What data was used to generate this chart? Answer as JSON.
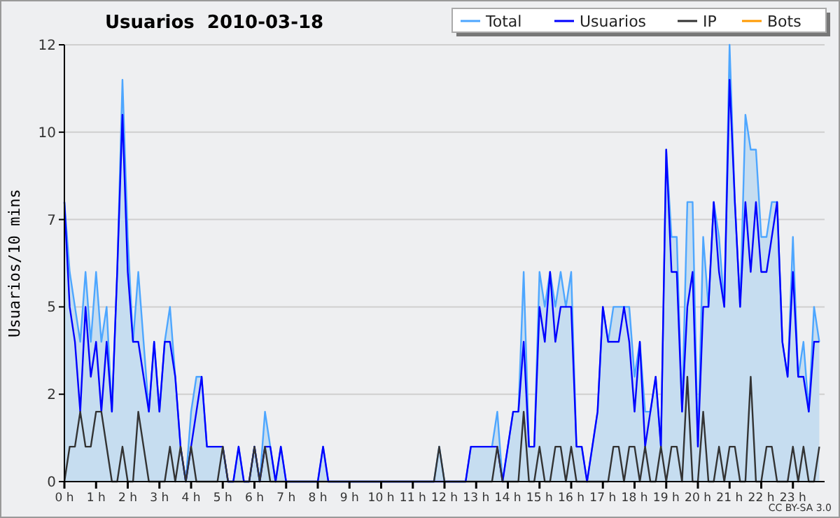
{
  "chart_data": {
    "type": "line",
    "title": "Usuarios  2010-03-18",
    "ylabel": "Usuarios/10 mins",
    "annotations": [
      "CC BY-SA 3.0"
    ],
    "x": [
      0,
      0.167,
      0.333,
      0.5,
      0.667,
      0.833,
      1,
      1.167,
      1.333,
      1.5,
      1.667,
      1.833,
      2,
      2.167,
      2.333,
      2.5,
      2.667,
      2.833,
      3,
      3.167,
      3.333,
      3.5,
      3.667,
      3.833,
      4,
      4.167,
      4.333,
      4.5,
      4.667,
      4.833,
      5,
      5.167,
      5.333,
      5.5,
      5.667,
      5.833,
      6,
      6.167,
      6.333,
      6.5,
      6.667,
      6.833,
      7,
      7.167,
      7.333,
      7.5,
      7.667,
      7.833,
      8,
      8.167,
      8.333,
      8.5,
      8.667,
      8.833,
      9,
      9.167,
      9.333,
      9.5,
      9.667,
      9.833,
      10,
      10.167,
      10.333,
      10.5,
      10.667,
      10.833,
      11,
      11.167,
      11.333,
      11.5,
      11.667,
      11.833,
      12,
      12.167,
      12.333,
      12.5,
      12.667,
      12.833,
      13,
      13.167,
      13.333,
      13.5,
      13.667,
      13.833,
      14,
      14.167,
      14.333,
      14.5,
      14.667,
      14.833,
      15,
      15.167,
      15.333,
      15.5,
      15.667,
      15.833,
      16,
      16.167,
      16.333,
      16.5,
      16.667,
      16.833,
      17,
      17.167,
      17.333,
      17.5,
      17.667,
      17.833,
      18,
      18.167,
      18.333,
      18.5,
      18.667,
      18.833,
      19,
      19.167,
      19.333,
      19.5,
      19.667,
      19.833,
      20,
      20.167,
      20.333,
      20.5,
      20.667,
      20.833,
      21,
      21.167,
      21.333,
      21.5,
      21.667,
      21.833,
      22,
      22.167,
      22.333,
      22.5,
      22.667,
      22.833,
      23,
      23.167,
      23.333,
      23.5,
      23.667,
      23.833
    ],
    "series": [
      {
        "name": "Total",
        "type": "area",
        "color": "#4da6ff",
        "values": [
          8,
          6,
          5,
          4,
          6,
          4,
          6,
          4,
          5,
          2,
          6,
          11.5,
          7,
          4,
          6,
          4,
          2,
          4,
          2,
          4,
          5,
          3,
          1,
          0,
          2,
          3,
          3,
          1,
          1,
          1,
          1,
          0,
          0,
          1,
          0,
          0,
          1,
          0,
          2,
          1,
          0,
          1,
          0,
          0,
          0,
          0,
          0,
          0,
          0,
          1,
          0,
          0,
          0,
          0,
          0,
          0,
          0,
          0,
          0,
          0,
          0,
          0,
          0,
          0,
          0,
          0,
          0,
          0,
          0,
          0,
          0,
          1,
          0,
          0,
          0,
          0,
          0,
          1,
          1,
          1,
          1,
          1,
          2,
          0,
          1,
          2,
          2,
          6,
          1,
          1,
          6,
          5,
          6,
          5,
          6,
          5,
          6,
          1,
          1,
          0,
          1,
          2,
          5,
          4,
          5,
          5,
          5,
          5,
          3,
          4,
          2,
          2,
          3,
          1,
          9.5,
          7,
          7,
          2,
          8,
          8,
          1,
          7,
          5,
          8,
          7,
          5,
          12.5,
          8,
          5,
          10.5,
          9.5,
          9.5,
          7,
          7,
          8,
          8,
          4,
          3,
          7,
          3,
          4,
          2,
          5,
          4
        ]
      },
      {
        "name": "Usuarios",
        "color": "#0000ff",
        "values": [
          8,
          5,
          4,
          2,
          5,
          3,
          4,
          2,
          4,
          2,
          6,
          10.5,
          6,
          4,
          4,
          3,
          2,
          4,
          2,
          4,
          4,
          3,
          1,
          0,
          1,
          2,
          3,
          1,
          1,
          1,
          1,
          0,
          0,
          1,
          0,
          0,
          1,
          0,
          1,
          1,
          0,
          1,
          0,
          0,
          0,
          0,
          0,
          0,
          0,
          1,
          0,
          0,
          0,
          0,
          0,
          0,
          0,
          0,
          0,
          0,
          0,
          0,
          0,
          0,
          0,
          0,
          0,
          0,
          0,
          0,
          0,
          0,
          0,
          0,
          0,
          0,
          0,
          1,
          1,
          1,
          1,
          1,
          1,
          0,
          1,
          2,
          2,
          4,
          1,
          1,
          5,
          4,
          6,
          4,
          5,
          5,
          5,
          1,
          1,
          0,
          1,
          2,
          5,
          4,
          4,
          4,
          5,
          4,
          2,
          4,
          1,
          2,
          3,
          1,
          9.5,
          6,
          6,
          2,
          5,
          6,
          1,
          5,
          5,
          8,
          6,
          5,
          11.5,
          8,
          5,
          8,
          6,
          8,
          6,
          6,
          7,
          8,
          4,
          3,
          6,
          3,
          3,
          2,
          4,
          4
        ]
      },
      {
        "name": "IP",
        "color": "#333333",
        "values": [
          0,
          1,
          1,
          2,
          1,
          1,
          2,
          2,
          1,
          0,
          0,
          1,
          0,
          0,
          2,
          1,
          0,
          0,
          0,
          0,
          1,
          0,
          1,
          0,
          1,
          0,
          0,
          0,
          0,
          0,
          1,
          0,
          0,
          0,
          0,
          0,
          1,
          0,
          1,
          0,
          0,
          0,
          0,
          0,
          0,
          0,
          0,
          0,
          0,
          0,
          0,
          0,
          0,
          0,
          0,
          0,
          0,
          0,
          0,
          0,
          0,
          0,
          0,
          0,
          0,
          0,
          0,
          0,
          0,
          0,
          0,
          1,
          0,
          0,
          0,
          0,
          0,
          0,
          0,
          0,
          0,
          0,
          1,
          0,
          0,
          0,
          0,
          2,
          0,
          0,
          1,
          0,
          0,
          1,
          1,
          0,
          1,
          0,
          0,
          0,
          0,
          0,
          0,
          0,
          1,
          1,
          0,
          1,
          1,
          0,
          1,
          0,
          0,
          1,
          0,
          1,
          1,
          0,
          3,
          0,
          0,
          2,
          0,
          0,
          1,
          0,
          1,
          1,
          0,
          0,
          3,
          0,
          0,
          1,
          1,
          0,
          0,
          0,
          1,
          0,
          1,
          0,
          0,
          1
        ]
      },
      {
        "name": "Bots",
        "color": "#ff9900",
        "values": [
          null,
          null,
          null,
          null,
          null,
          null,
          null,
          null,
          null,
          null,
          null,
          null,
          null,
          null,
          null,
          null,
          null,
          null,
          null,
          null,
          null,
          null,
          null,
          null,
          null,
          null,
          null,
          null,
          null,
          null,
          null,
          null,
          null,
          null,
          null,
          null,
          null,
          null,
          null,
          null,
          null,
          null,
          null,
          null,
          null,
          null,
          null,
          null,
          null,
          null,
          null,
          null,
          null,
          null,
          null,
          null,
          null,
          null,
          null,
          null,
          null,
          null,
          null,
          null,
          null,
          null,
          null,
          null,
          null,
          null,
          null,
          null,
          null,
          null,
          null,
          null,
          null,
          null,
          null,
          null,
          null,
          null,
          null,
          null,
          null,
          null,
          null,
          null,
          null,
          null,
          null,
          null,
          null,
          null,
          null,
          null,
          null,
          null,
          null,
          null,
          null,
          null,
          null,
          null,
          null,
          null,
          null,
          null,
          null,
          null,
          null,
          null,
          null,
          null,
          null,
          null,
          null,
          null,
          null,
          null,
          null,
          null,
          null,
          null,
          null,
          null,
          null,
          null,
          null,
          null,
          null,
          null,
          null,
          null,
          null,
          null,
          null,
          null,
          null,
          null,
          null,
          null,
          null,
          null
        ]
      }
    ],
    "xlim": [
      0,
      24
    ],
    "xticks": [
      {
        "value": 0,
        "label": "0 h"
      },
      {
        "value": 1,
        "label": "1 h"
      },
      {
        "value": 2,
        "label": "2 h"
      },
      {
        "value": 3,
        "label": "3 h"
      },
      {
        "value": 4,
        "label": "4 h"
      },
      {
        "value": 5,
        "label": "5 h"
      },
      {
        "value": 6,
        "label": "6 h"
      },
      {
        "value": 7,
        "label": "7 h"
      },
      {
        "value": 8,
        "label": "8 h"
      },
      {
        "value": 9,
        "label": "9 h"
      },
      {
        "value": 10,
        "label": "10 h"
      },
      {
        "value": 11,
        "label": "11 h"
      },
      {
        "value": 12,
        "label": "12 h"
      },
      {
        "value": 13,
        "label": "13 h"
      },
      {
        "value": 14,
        "label": "14 h"
      },
      {
        "value": 15,
        "label": "15 h"
      },
      {
        "value": 16,
        "label": "16 h"
      },
      {
        "value": 17,
        "label": "17 h"
      },
      {
        "value": 18,
        "label": "18 h"
      },
      {
        "value": 19,
        "label": "19 h"
      },
      {
        "value": 20,
        "label": "20 h"
      },
      {
        "value": 21,
        "label": "21 h"
      },
      {
        "value": 22,
        "label": "22 h"
      },
      {
        "value": 23,
        "label": "23 h"
      }
    ],
    "ylim": [
      0,
      12.5
    ],
    "yticks": [
      0,
      {
        "value": 2.5,
        "label": "2"
      },
      5,
      {
        "value": 7.5,
        "label": "7"
      },
      10,
      {
        "value": 12.5,
        "label": "12"
      }
    ],
    "grid": "y",
    "legend": "top right",
    "marker": "none",
    "line_style": "solid"
  }
}
